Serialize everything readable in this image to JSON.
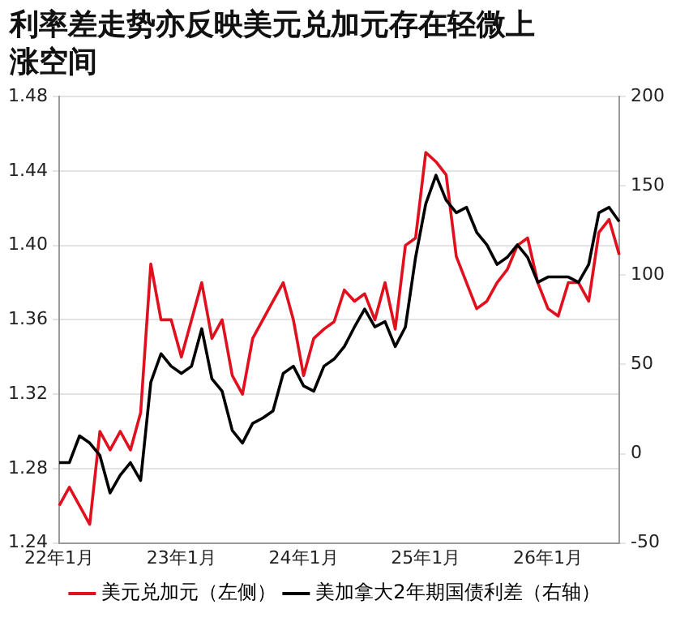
{
  "chart_data": {
    "type": "line",
    "title": "利率差走势亦反映美元兑加元存在轻微上涨空间",
    "categories": [
      "22年1月",
      null,
      null,
      null,
      null,
      null,
      null,
      null,
      null,
      null,
      null,
      null,
      "23年1月",
      null,
      null,
      null,
      null,
      null,
      null,
      null,
      null,
      null,
      null,
      null,
      "24年1月",
      null,
      null,
      null,
      null,
      null,
      null,
      null,
      null,
      null,
      null,
      null,
      "25年1月",
      null,
      null,
      null,
      null,
      null,
      null,
      null,
      null,
      null,
      null,
      null,
      "26年1月",
      null,
      null,
      null,
      null,
      null,
      null,
      null
    ],
    "ylim": [
      1.24,
      1.48
    ],
    "yticks": [
      {
        "value": 1.24,
        "label": "1.24"
      },
      {
        "value": 1.28,
        "label": "1.28"
      },
      {
        "value": 1.32,
        "label": "1.32"
      },
      {
        "value": 1.36,
        "label": "1.36"
      },
      {
        "value": 1.4,
        "label": "1.40"
      },
      {
        "value": 1.44,
        "label": "1.44"
      },
      {
        "value": 1.48,
        "label": "1.48"
      }
    ],
    "y2lim": [
      -50,
      200
    ],
    "y2ticks": [
      -50,
      0,
      50,
      100,
      150,
      200
    ],
    "series": [
      {
        "name": "美元兑加元（左侧）",
        "color": "#e0101e",
        "values": [
          1.26,
          1.27,
          1.26,
          1.25,
          1.3,
          1.29,
          1.3,
          1.29,
          1.31,
          1.39,
          1.36,
          1.36,
          1.34,
          1.36,
          1.38,
          1.35,
          1.36,
          1.33,
          1.32,
          1.35,
          1.36,
          1.37,
          1.38,
          1.36,
          1.33,
          1.35,
          1.355,
          1.359,
          1.376,
          1.37,
          1.374,
          1.36,
          1.38,
          1.355,
          1.4,
          1.404,
          1.45,
          1.445,
          1.438,
          1.394,
          1.38,
          1.366,
          1.37,
          1.38,
          1.387,
          1.4,
          1.404,
          1.38,
          1.366,
          1.362,
          1.38,
          1.38,
          1.37,
          1.407,
          1.414,
          1.395
        ]
      },
      {
        "name": "美加拿大2年期国债利差（右轴）",
        "color": "#000000",
        "axis": "y2",
        "values": [
          -5,
          -5,
          10,
          6,
          -1,
          -22,
          -12,
          -5,
          -15,
          40,
          56,
          49,
          45,
          49,
          70,
          42,
          35,
          13,
          6,
          17,
          20,
          24,
          45,
          49,
          38,
          35,
          49,
          53,
          60,
          71,
          81,
          71,
          74,
          60,
          71,
          110,
          140,
          156,
          142,
          135,
          138,
          124,
          117,
          106,
          110,
          117,
          110,
          96,
          99,
          99,
          99,
          96,
          106,
          135,
          138,
          130
        ]
      }
    ],
    "grid": "y",
    "legend": "bottom",
    "marker": "none",
    "line_style": "solid"
  }
}
